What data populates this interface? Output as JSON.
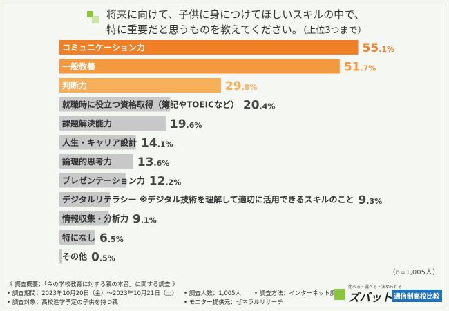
{
  "header": {
    "title_line1": "将来に向けて、子供に身につけてほしいスキルの中で、",
    "title_line2": "特に重要だと思うものを教えてください。",
    "title_suffix": "（上位3つまで）"
  },
  "colors": {
    "top1": "#ef8026",
    "top2": "#f39a41",
    "top3": "#f6b05c",
    "other": "#c8c8c8"
  },
  "chart_data": {
    "type": "bar",
    "orientation": "horizontal",
    "unit": "%",
    "categories": [
      "コミュニケーション力",
      "一般教養",
      "判断力",
      "就職時に役立つ資格取得（簿記やTOEICなど）",
      "課題解決能力",
      "人生・キャリア設計",
      "論理的思考力",
      "プレゼンテーション力",
      "デジタルリテラシー ※デジタル技術を理解して適切に活用できるスキルのこと",
      "情報収集・分析力",
      "特になし",
      "その他"
    ],
    "values": [
      55.1,
      51.7,
      29.8,
      20.4,
      19.6,
      14.1,
      13.6,
      12.2,
      9.3,
      9.1,
      6.5,
      0.5
    ],
    "sample_note": "（n=1,005人）"
  },
  "survey": {
    "heading": "《 調査概要：「今の学校教育に対する親の本音」に関する調査 》",
    "period": "• 調査期間：2023年10月20日（金）〜2023年10月21日（土）",
    "count": "• 調査人数：1,005人",
    "method": "• 調査方法：インターネット調査",
    "target": "• 調査対象：高校進学予定の子供を持つ親",
    "provider": "• モニター提供元：ゼネラルリサーチ"
  },
  "logo": {
    "tagline": "比べる・選べる・決められる",
    "brand": "ズバット",
    "badge": "通信制高校比較"
  }
}
